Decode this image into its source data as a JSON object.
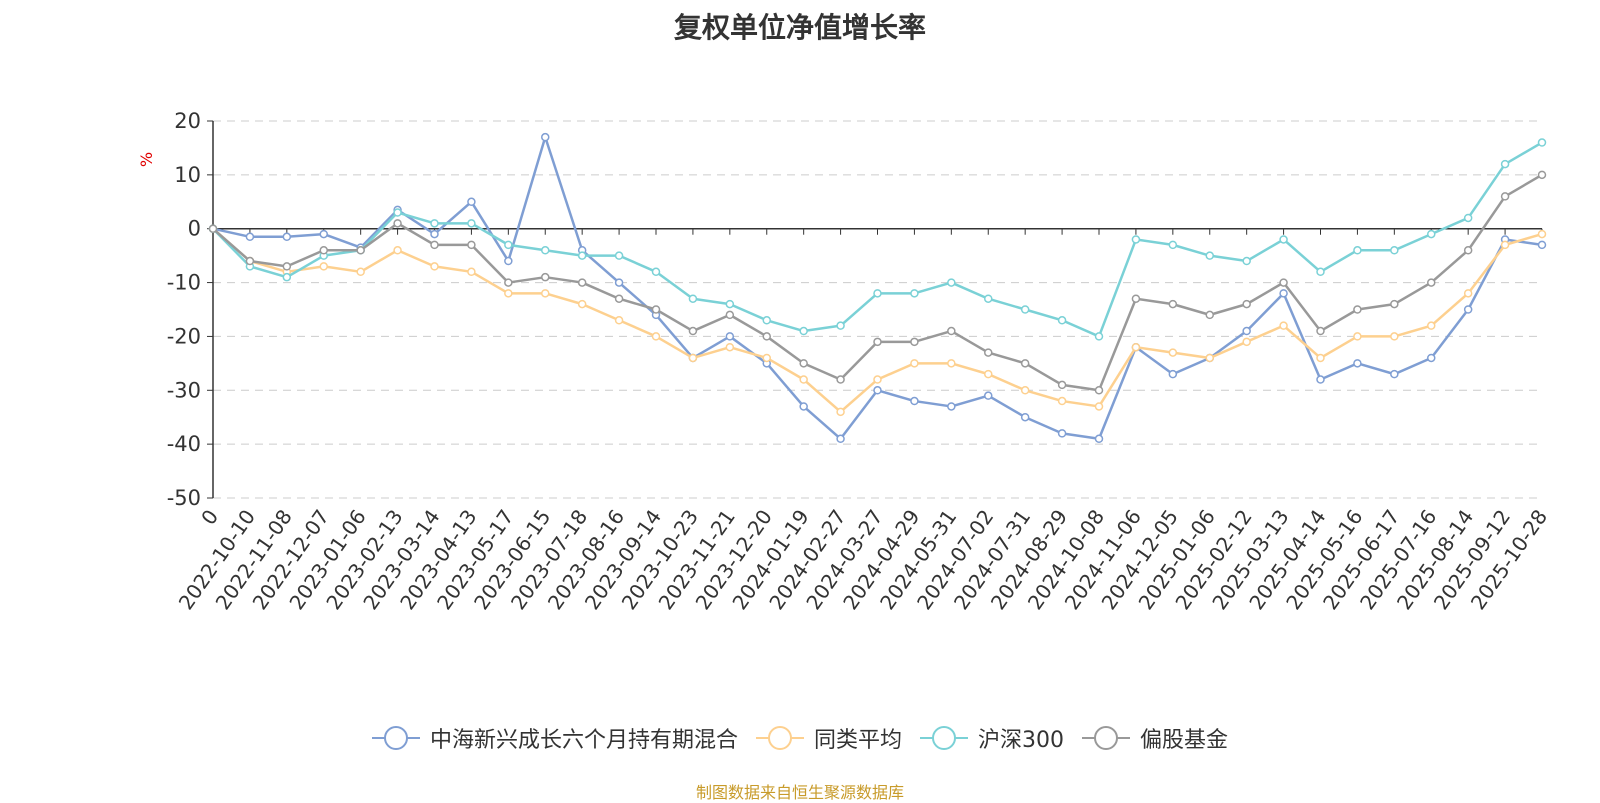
{
  "header": {
    "title": "复权单位净值增长率",
    "unit": "%"
  },
  "footer": {
    "source": "制图数据来自恒生聚源数据库"
  },
  "colors": {
    "fund": "#7f9ed3",
    "peer": "#fdd08f",
    "hs300": "#7ad1d6",
    "equity": "#999999",
    "axis": "#333333",
    "grid": "#cccccc"
  },
  "chart_data": {
    "type": "line",
    "title": "复权单位净值增长率",
    "ylabel": "%",
    "ylim": [
      -50,
      20
    ],
    "yticks": [
      20,
      10,
      0,
      -10,
      -20,
      -30,
      -40,
      -50
    ],
    "categories": [
      "0",
      "2022-10-10",
      "2022-11-08",
      "2022-12-07",
      "2023-01-06",
      "2023-02-13",
      "2023-03-14",
      "2023-04-13",
      "2023-05-17",
      "2023-06-15",
      "2023-07-18",
      "2023-08-16",
      "2023-09-14",
      "2023-10-23",
      "2023-11-21",
      "2023-12-20",
      "2024-01-19",
      "2024-02-27",
      "2024-03-27",
      "2024-04-29",
      "2024-05-31",
      "2024-07-02",
      "2024-07-31",
      "2024-08-29",
      "2024-10-08",
      "2024-11-06",
      "2024-12-05",
      "2025-01-06",
      "2025-02-12",
      "2025-03-13",
      "2025-04-14",
      "2025-05-16",
      "2025-06-17",
      "2025-07-16",
      "2025-08-14",
      "2025-09-12",
      "2025-10-28"
    ],
    "series": [
      {
        "name": "中海新兴成长六个月持有期混合",
        "color": "#7f9ed3",
        "values": [
          0,
          -1.5,
          -1.5,
          -1.0,
          -3.5,
          3.5,
          -1.0,
          5.0,
          -6.0,
          17.0,
          -4.0,
          -10.0,
          -16.0,
          -24.0,
          -20.0,
          -25.0,
          -33.0,
          -39.0,
          -30.0,
          -32.0,
          -33.0,
          -31.0,
          -35.0,
          -38.0,
          -39.0,
          -22.0,
          -27.0,
          -24.0,
          -19.0,
          -12.0,
          -28.0,
          -25.0,
          -27.0,
          -24.0,
          -15.0,
          -2.0,
          -3.0
        ]
      },
      {
        "name": "同类平均",
        "color": "#fdd08f",
        "values": [
          0,
          -6.0,
          -8.0,
          -7.0,
          -8.0,
          -4.0,
          -7.0,
          -8.0,
          -12.0,
          -12.0,
          -14.0,
          -17.0,
          -20.0,
          -24.0,
          -22.0,
          -24.0,
          -28.0,
          -34.0,
          -28.0,
          -25.0,
          -25.0,
          -27.0,
          -30.0,
          -32.0,
          -33.0,
          -22.0,
          -23.0,
          -24.0,
          -21.0,
          -18.0,
          -24.0,
          -20.0,
          -20.0,
          -18.0,
          -12.0,
          -3.0,
          -1.0
        ]
      },
      {
        "name": "沪深300",
        "color": "#7ad1d6",
        "values": [
          0,
          -7.0,
          -9.0,
          -5.0,
          -4.0,
          3.0,
          1.0,
          1.0,
          -3.0,
          -4.0,
          -5.0,
          -5.0,
          -8.0,
          -13.0,
          -14.0,
          -17.0,
          -19.0,
          -18.0,
          -12.0,
          -12.0,
          -10.0,
          -13.0,
          -15.0,
          -17.0,
          -20.0,
          -2.0,
          -3.0,
          -5.0,
          -6.0,
          -2.0,
          -8.0,
          -4.0,
          -4.0,
          -1.0,
          2.0,
          12.0,
          16.0
        ]
      },
      {
        "name": "偏股基金",
        "color": "#999999",
        "values": [
          0,
          -6.0,
          -7.0,
          -4.0,
          -4.0,
          1.0,
          -3.0,
          -3.0,
          -10.0,
          -9.0,
          -10.0,
          -13.0,
          -15.0,
          -19.0,
          -16.0,
          -20.0,
          -25.0,
          -28.0,
          -21.0,
          -21.0,
          -19.0,
          -23.0,
          -25.0,
          -29.0,
          -30.0,
          -13.0,
          -14.0,
          -16.0,
          -14.0,
          -10.0,
          -19.0,
          -15.0,
          -14.0,
          -10.0,
          -4.0,
          6.0,
          10.0
        ]
      }
    ]
  }
}
